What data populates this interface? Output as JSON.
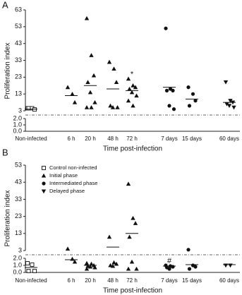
{
  "chart_data": [
    {
      "panel": "A",
      "type": "scatter",
      "ylabel": "Proliferation index",
      "xlabel": "Time post-infection",
      "categories": [
        "Non-infected",
        "6 h",
        "20 h",
        "48 h",
        "72 h",
        "7 days",
        "15 days",
        "60 days"
      ],
      "ylim": [
        3,
        63
      ],
      "yticks": [
        3,
        13,
        23,
        33,
        43,
        53,
        63
      ],
      "ylim_lower": [
        0,
        2
      ],
      "yticks_lower": [
        {
          "value": 0,
          "label": "0.0"
        },
        {
          "value": 1,
          "label": "1.0"
        },
        {
          "value": 2,
          "label": "2.0"
        }
      ],
      "series": [
        {
          "marker": "square",
          "color": "#111"
        },
        {
          "marker": "triangle",
          "color": "#111"
        },
        {
          "marker": "circle",
          "color": "#111"
        },
        {
          "marker": "triangle-down",
          "color": "#111"
        }
      ],
      "groups": [
        {
          "series": 0,
          "values": [
            4.5,
            4.5,
            3.8,
            4.5
          ],
          "mean": 4
        },
        {
          "series": 1,
          "values": [
            17,
            13,
            8
          ],
          "mean": 12
        },
        {
          "series": 1,
          "values": [
            58,
            36,
            24,
            20,
            14,
            8,
            5,
            5
          ],
          "mean": 18
        },
        {
          "series": 1,
          "values": [
            32,
            28,
            20,
            6,
            5,
            5
          ],
          "mean": 16
        },
        {
          "series": 1,
          "values": [
            22,
            18,
            17,
            16,
            14,
            12,
            9,
            6
          ],
          "mean": 15
        },
        {
          "series": 2,
          "values": [
            52,
            16,
            15,
            15,
            6,
            4
          ],
          "mean": 17
        },
        {
          "series": 2,
          "values": [
            17,
            13,
            9,
            6
          ],
          "mean": 10
        },
        {
          "series": 3,
          "values": [
            20,
            9,
            8,
            7,
            6,
            5
          ],
          "mean": 8
        }
      ],
      "annotations": [
        {
          "text": "*",
          "category": 4
        }
      ]
    },
    {
      "panel": "B",
      "type": "scatter",
      "ylabel": "Proliferation index",
      "xlabel": "Time post-infection",
      "categories": [
        "Non-infected",
        "6 h",
        "20 h",
        "48 h",
        "72 h",
        "7 days",
        "15 days",
        "60 days"
      ],
      "ylim": [
        3,
        53
      ],
      "yticks": [
        3,
        13,
        23,
        33,
        43,
        53
      ],
      "ylim_lower": [
        0,
        2
      ],
      "yticks_lower": [
        {
          "value": 0,
          "label": "0.0"
        },
        {
          "value": 1,
          "label": "1.0"
        },
        {
          "value": 2,
          "label": "2.0"
        }
      ],
      "series": [
        {
          "name": "Control non-infected",
          "marker": "square",
          "color": "#111"
        },
        {
          "name": "Initial phase",
          "marker": "triangle",
          "color": "#111"
        },
        {
          "name": "Intermediated phase",
          "marker": "circle",
          "color": "#111"
        },
        {
          "name": "Delayed phase",
          "marker": "triangle-down",
          "color": "#111"
        }
      ],
      "groups": [
        {
          "series": 0,
          "values": [
            1.3,
            1.1,
            0.2,
            0.2
          ],
          "mean": 0.7
        },
        {
          "series": 1,
          "values": [
            4,
            1.9,
            1.5
          ],
          "mean": 1.8
        },
        {
          "series": 1,
          "values": [
            1.3,
            1.2,
            1.0,
            0.9,
            0.8,
            0.7,
            0.5
          ],
          "mean": 1.0
        },
        {
          "series": 1,
          "values": [
            11,
            1.4,
            1.2,
            1.0,
            0.9
          ],
          "mean": 5
        },
        {
          "series": 1,
          "values": [
            42,
            22,
            19,
            11,
            1.5,
            0.5,
            0.5
          ],
          "mean": 13
        },
        {
          "series": 2,
          "values": [
            1.0,
            0.9,
            0.8,
            0.7,
            0.5
          ],
          "mean": 0.9
        },
        {
          "series": 2,
          "values": [
            3.5,
            1.0,
            0.8,
            0.5
          ],
          "mean": 1.1
        },
        {
          "series": 3,
          "values": [
            1.0,
            1.0
          ],
          "mean": 1.1
        }
      ],
      "annotations": [
        {
          "text": "#",
          "category": 5
        }
      ]
    }
  ]
}
